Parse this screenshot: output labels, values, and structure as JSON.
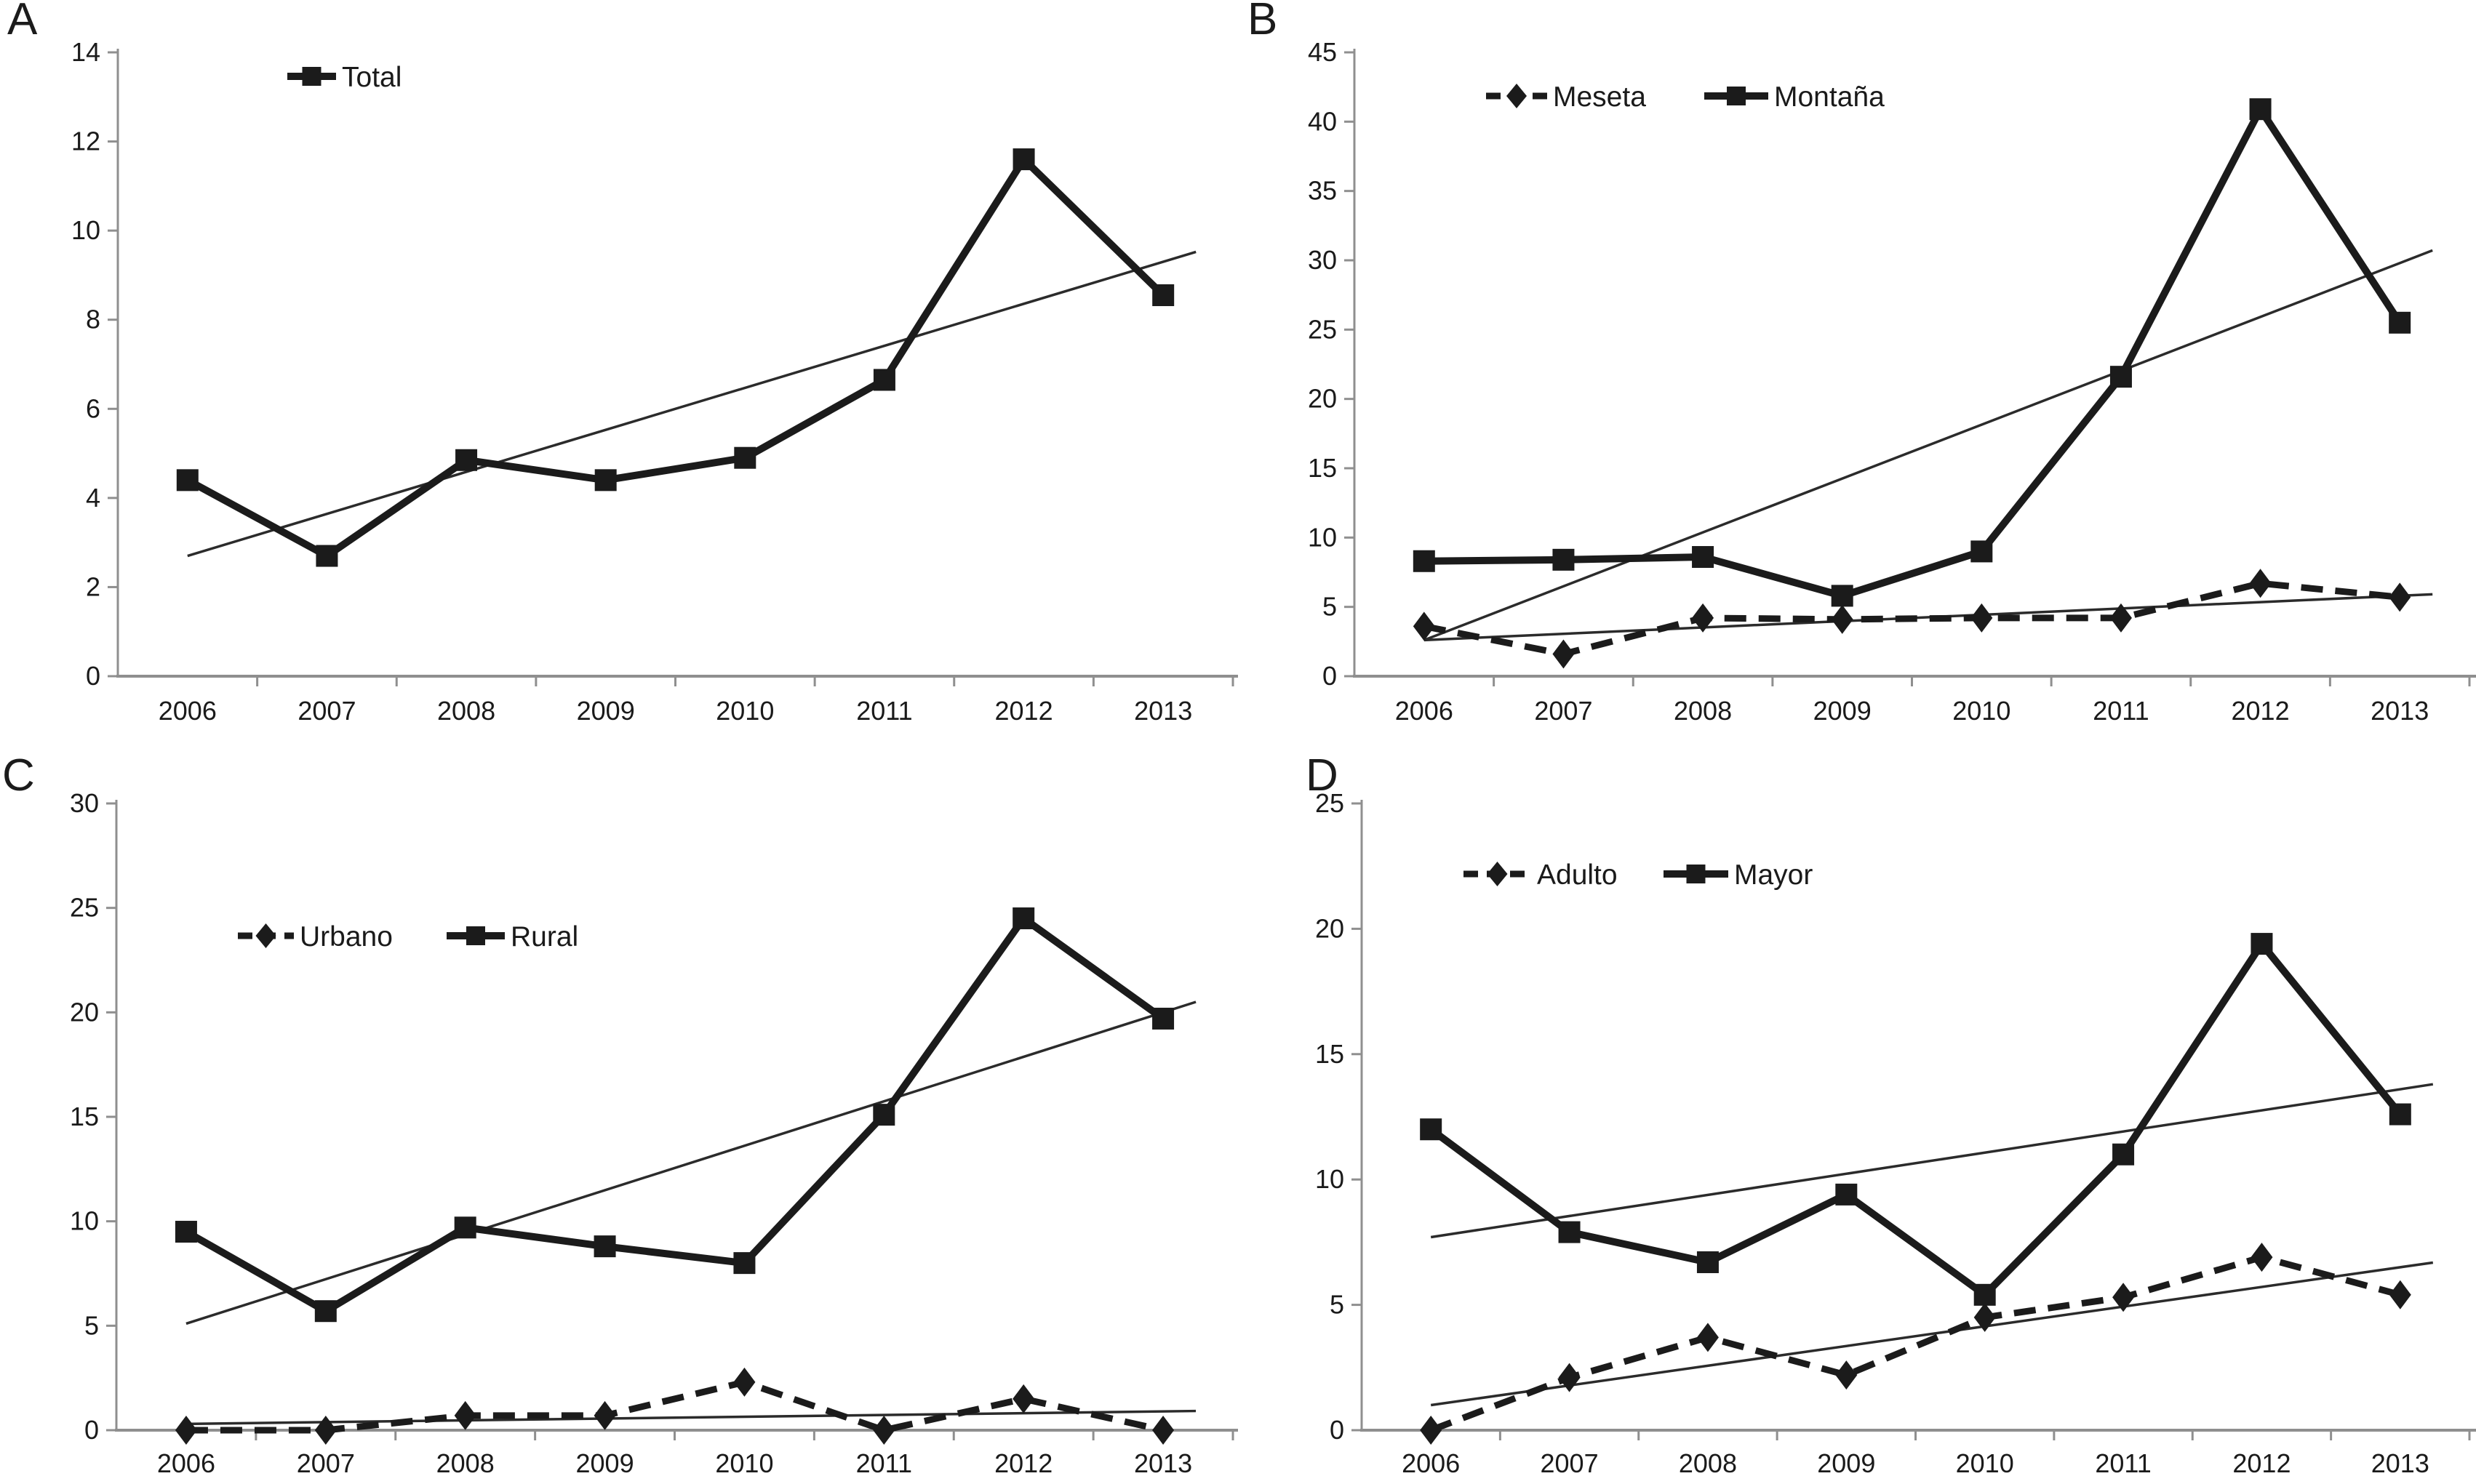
{
  "figure": {
    "description": "Four-panel line chart figure, annual values 2006-2013 with linear trendlines",
    "colors": {
      "series": "#1b1b1b",
      "axis": "#8f8f8f",
      "trendline": "#2b2b2b",
      "text": "#1a1a1a",
      "background": "#ffffff"
    }
  },
  "chart_data": [
    {
      "panel": "A",
      "type": "line",
      "categories": [
        "2006",
        "2007",
        "2008",
        "2009",
        "2010",
        "2011",
        "2012",
        "2013"
      ],
      "ylim": [
        0,
        14
      ],
      "yticks": [
        0,
        2,
        4,
        6,
        8,
        10,
        12,
        14
      ],
      "grid": false,
      "legend_position": "top",
      "legend": [
        "Total"
      ],
      "series": [
        {
          "name": "Total",
          "line": "solid",
          "marker": "square",
          "values": [
            4.4,
            2.7,
            4.85,
            4.4,
            4.9,
            6.65,
            11.6,
            8.55
          ],
          "trend": {
            "start": 2.7,
            "end": 9.3
          }
        }
      ]
    },
    {
      "panel": "B",
      "type": "line",
      "categories": [
        "2006",
        "2007",
        "2008",
        "2009",
        "2010",
        "2011",
        "2012",
        "2013"
      ],
      "ylim": [
        0,
        45
      ],
      "yticks": [
        0,
        5,
        10,
        15,
        20,
        25,
        30,
        35,
        40,
        45
      ],
      "grid": false,
      "legend_position": "top",
      "legend": [
        "Meseta",
        "Montaña"
      ],
      "series": [
        {
          "name": "Meseta",
          "line": "dashed",
          "marker": "diamond",
          "values": [
            3.6,
            1.6,
            4.2,
            4.1,
            4.2,
            4.2,
            6.7,
            5.7
          ],
          "trend": {
            "start": 2.6,
            "end": 5.8
          }
        },
        {
          "name": "Montaña",
          "line": "solid",
          "marker": "square",
          "values": [
            8.3,
            8.4,
            8.6,
            5.8,
            9.0,
            21.6,
            40.9,
            25.5
          ],
          "trend": {
            "start": 2.6,
            "end": 29.8
          }
        }
      ]
    },
    {
      "panel": "C",
      "type": "line",
      "categories": [
        "2006",
        "2007",
        "2008",
        "2009",
        "2010",
        "2011",
        "2012",
        "2013"
      ],
      "ylim": [
        0,
        30
      ],
      "yticks": [
        0,
        5,
        10,
        15,
        20,
        25,
        30
      ],
      "grid": false,
      "legend_position": "top",
      "legend": [
        "Urbano",
        "Rural"
      ],
      "series": [
        {
          "name": "Urbano",
          "line": "dashed",
          "marker": "diamond",
          "values": [
            0.0,
            0.0,
            0.7,
            0.7,
            2.3,
            0.0,
            1.5,
            0.0
          ],
          "trend": {
            "start": 0.3,
            "end": 0.9
          }
        },
        {
          "name": "Rural",
          "line": "solid",
          "marker": "square",
          "values": [
            9.5,
            5.7,
            9.7,
            8.8,
            8.0,
            15.1,
            24.5,
            19.7
          ],
          "trend": {
            "start": 5.1,
            "end": 20.0
          }
        }
      ]
    },
    {
      "panel": "D",
      "type": "line",
      "categories": [
        "2006",
        "2007",
        "2008",
        "2009",
        "2010",
        "2011",
        "2012",
        "2013"
      ],
      "ylim": [
        0,
        25
      ],
      "yticks": [
        0,
        5,
        10,
        15,
        20,
        25
      ],
      "grid": false,
      "legend_position": "top",
      "legend": [
        "Adulto",
        "Mayor"
      ],
      "series": [
        {
          "name": "Adulto",
          "line": "dashed",
          "marker": "diamond",
          "values": [
            0.0,
            2.1,
            3.7,
            2.2,
            4.5,
            5.3,
            6.9,
            5.4
          ],
          "trend": {
            "start": 1.0,
            "end": 6.5
          }
        },
        {
          "name": "Mayor",
          "line": "solid",
          "marker": "square",
          "values": [
            12.0,
            7.9,
            6.7,
            9.4,
            5.4,
            11.0,
            19.4,
            12.6
          ],
          "trend": {
            "start": 7.7,
            "end": 13.6
          }
        }
      ]
    }
  ]
}
